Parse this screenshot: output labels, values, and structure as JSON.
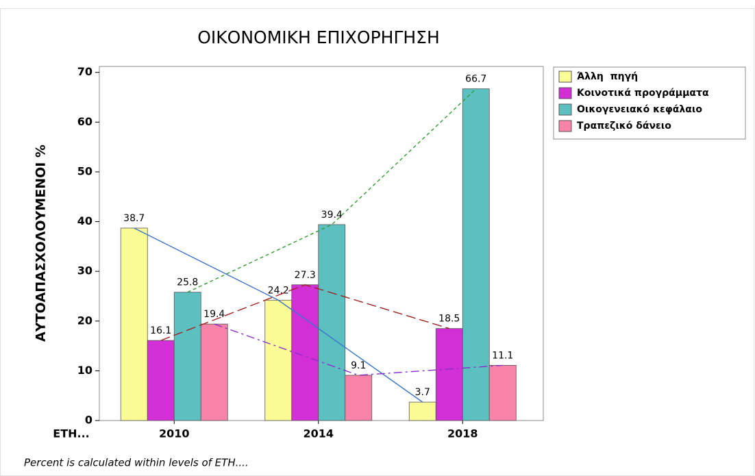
{
  "chart_data": {
    "type": "bar",
    "title": "ΟΙΚΟΝΟΜΙΚΗ ΕΠΙΧΟΡΗΓΗΣΗ",
    "y_label": "ΑΥΤΟΑΠΑΣΧΟΛΟΥΜΕΝΟΙ %",
    "x_label": "ΕΤΗ...",
    "footnote": "Percent is calculated within levels of ΕΤΗ....",
    "categories": [
      "2010",
      "2014",
      "2018"
    ],
    "series": [
      {
        "name": "Άλλη  πηγή",
        "color": "#fcfc96",
        "line_color": "#3a74c8",
        "line_style": "solid",
        "values": [
          38.7,
          24.2,
          3.7
        ]
      },
      {
        "name": "Κοινοτικά προγράμματα",
        "color": "#d22fd6",
        "line_color": "#a02020",
        "line_style": "longdash",
        "values": [
          16.1,
          27.3,
          18.5
        ]
      },
      {
        "name": "Οικογενειακό κεφάλαιο",
        "color": "#5cc0c0",
        "line_color": "#2e9e2e",
        "line_style": "dashed",
        "values": [
          25.8,
          39.4,
          66.7
        ]
      },
      {
        "name": "Τραπεζικό δάνειο",
        "color": "#f783a8",
        "line_color": "#8a2ccc",
        "line_style": "dashdot",
        "values": [
          19.4,
          9.1,
          11.1
        ]
      }
    ],
    "ylim": [
      0,
      71.2
    ],
    "yticks": [
      0,
      10,
      20,
      30,
      40,
      50,
      60,
      70
    ],
    "legend": "right"
  }
}
